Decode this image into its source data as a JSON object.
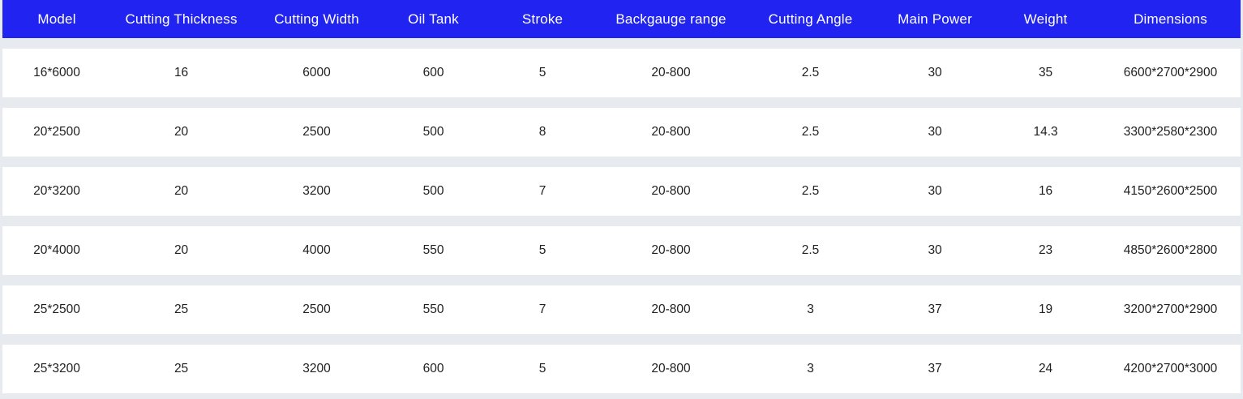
{
  "colors": {
    "header-bg": "#2123f0",
    "header-text": "#ffffff",
    "row-bg": "#ffffff",
    "page-bg": "#e7ebf0",
    "body-text": "#1f1f1f"
  },
  "chart_data": {
    "type": "table",
    "title": "",
    "columns": [
      "Model",
      "Cutting Thickness",
      "Cutting Width",
      "Oil Tank",
      "Stroke",
      "Backgauge range",
      "Cutting Angle",
      "Main Power",
      "Weight",
      "Dimensions"
    ],
    "rows": [
      [
        "16*6000",
        "16",
        "6000",
        "600",
        "5",
        "20-800",
        "2.5",
        "30",
        "35",
        "6600*2700*2900"
      ],
      [
        "20*2500",
        "20",
        "2500",
        "500",
        "8",
        "20-800",
        "2.5",
        "30",
        "14.3",
        "3300*2580*2300"
      ],
      [
        "20*3200",
        "20",
        "3200",
        "500",
        "7",
        "20-800",
        "2.5",
        "30",
        "16",
        "4150*2600*2500"
      ],
      [
        "20*4000",
        "20",
        "4000",
        "550",
        "5",
        "20-800",
        "2.5",
        "30",
        "23",
        "4850*2600*2800"
      ],
      [
        "25*2500",
        "25",
        "2500",
        "550",
        "7",
        "20-800",
        "3",
        "37",
        "19",
        "3200*2700*2900"
      ],
      [
        "25*3200",
        "25",
        "3200",
        "600",
        "5",
        "20-800",
        "3",
        "37",
        "24",
        "4200*2700*3000"
      ]
    ]
  }
}
